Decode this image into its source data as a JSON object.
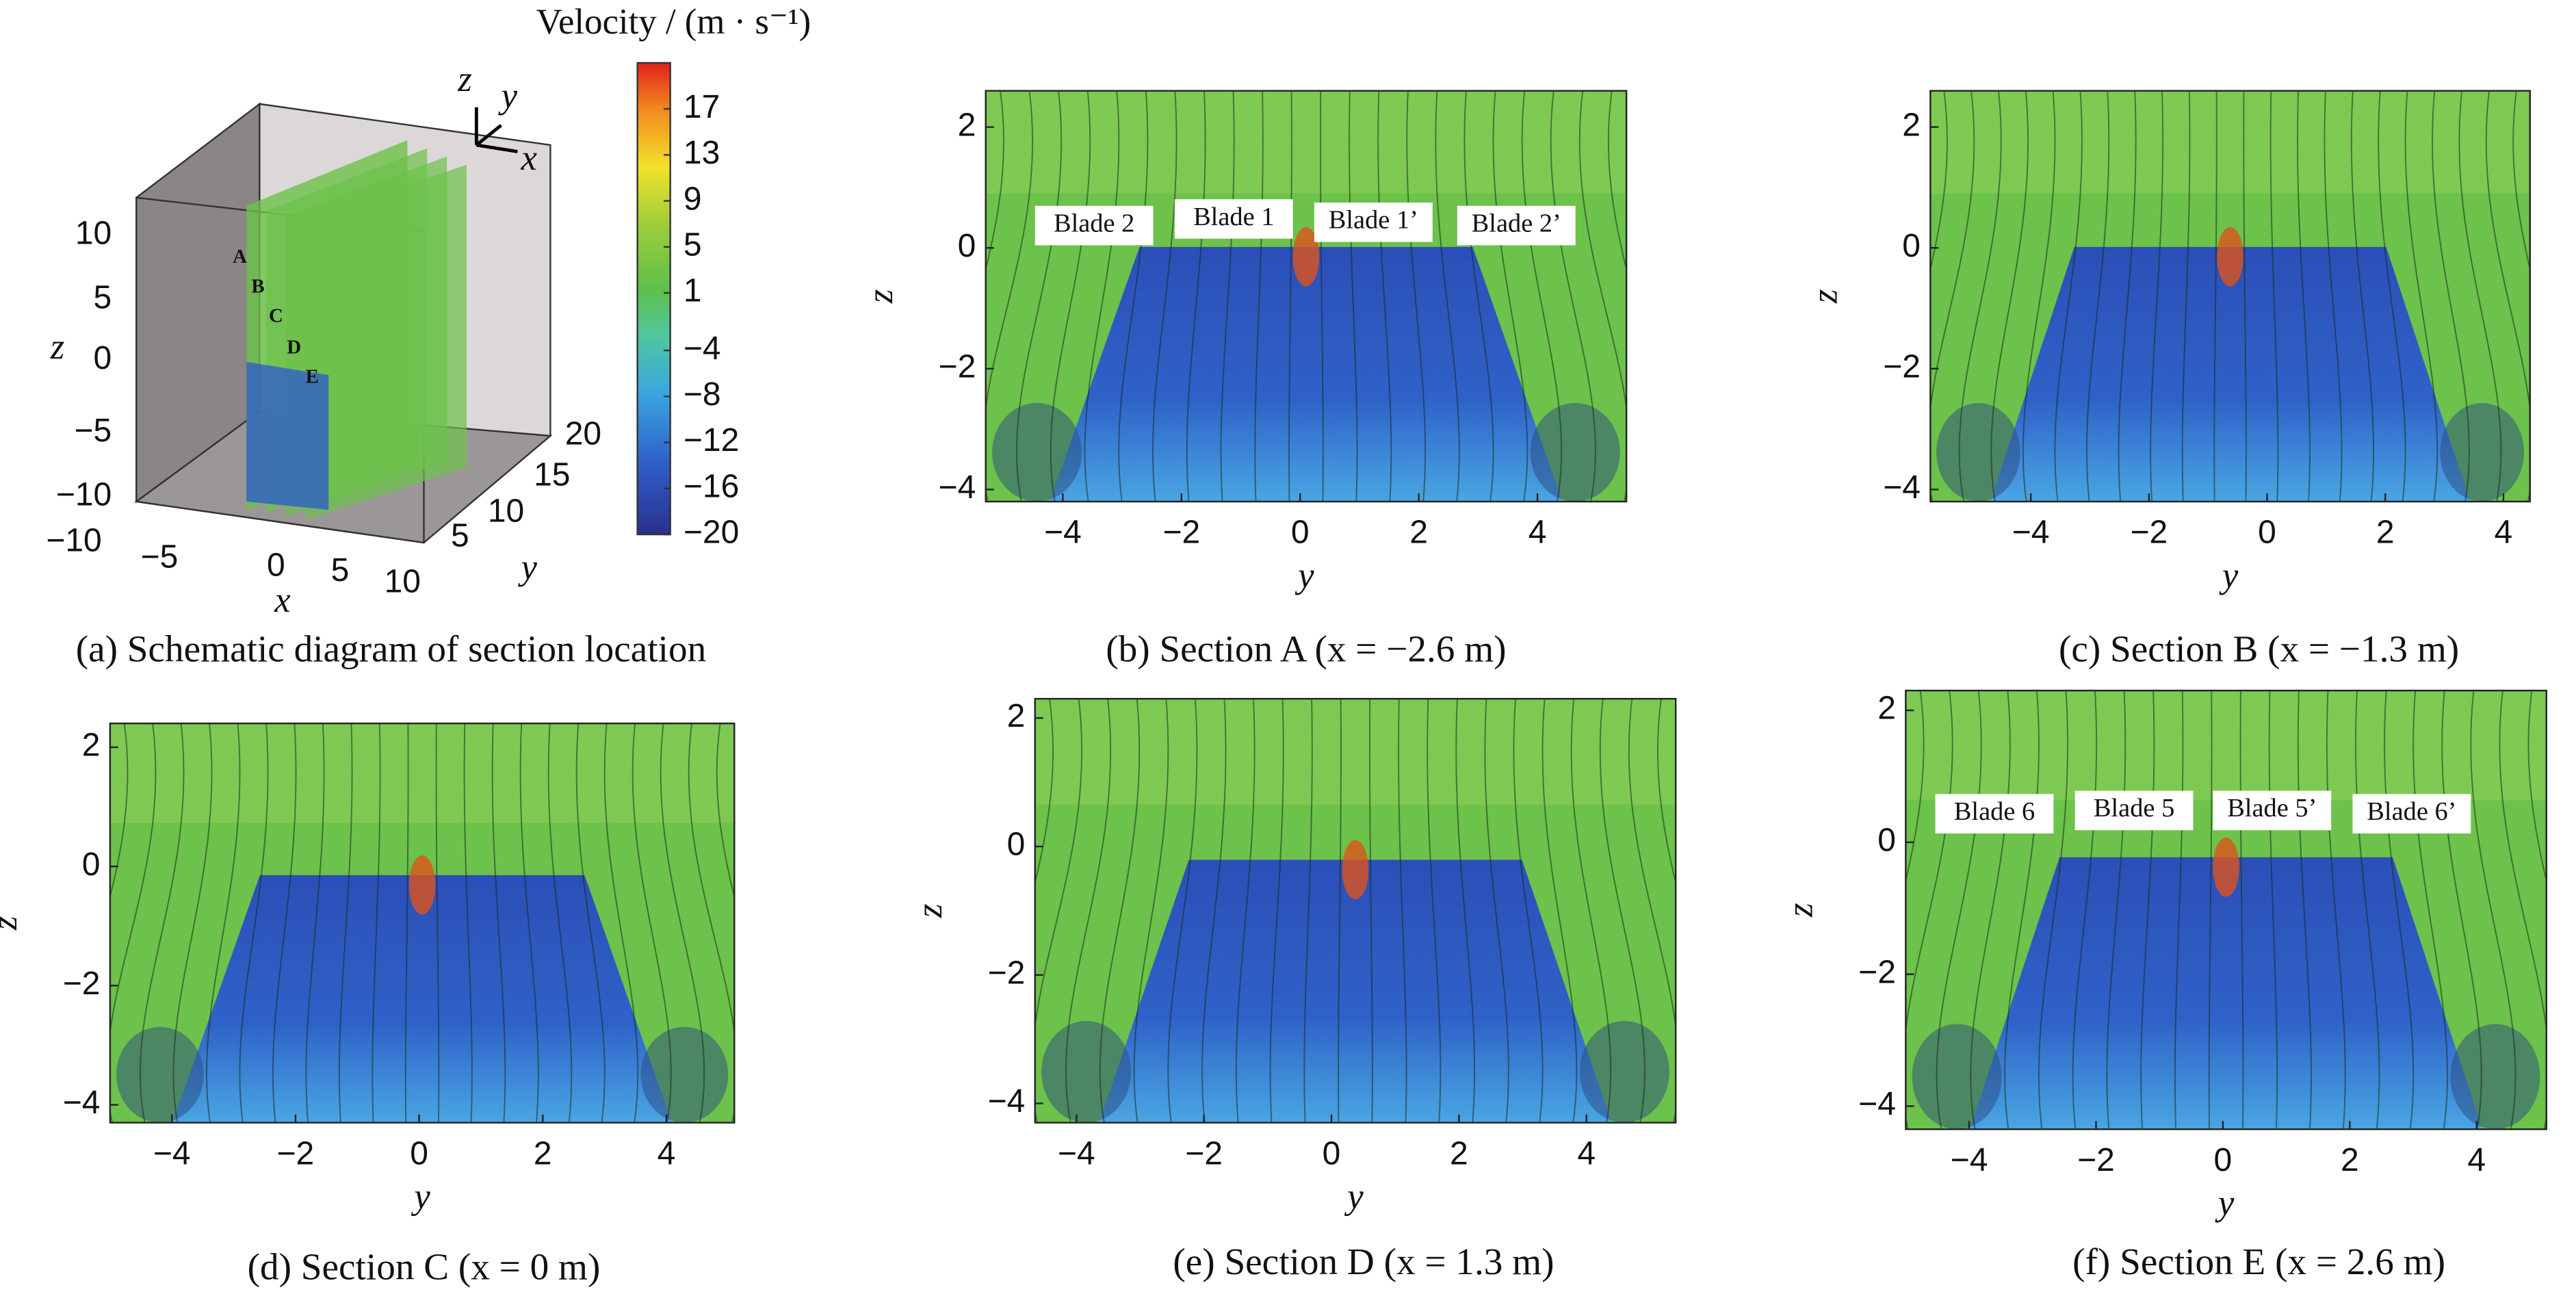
{
  "panel_a": {
    "caption": "(a) Schematic diagram of section location",
    "xlabel": "x",
    "ylabel": "y",
    "zlabel": "z",
    "xticks": [
      {
        "value": -10,
        "label": "−10"
      },
      {
        "value": -5,
        "label": "−5"
      },
      0,
      5,
      10
    ],
    "yticks": [
      5,
      10,
      15,
      20
    ],
    "zticks": [
      10,
      5,
      0,
      {
        "value": -5,
        "label": "−5"
      },
      {
        "value": -10,
        "label": "−10"
      }
    ],
    "sections": [
      "A",
      "B",
      "C",
      "D",
      "E"
    ],
    "triad": [
      "z",
      "y",
      "x"
    ]
  },
  "colorbar": {
    "title": "Velocity / (m · s⁻¹)",
    "clim": [
      -20,
      21
    ],
    "ticks": [
      17,
      13,
      9,
      5,
      1,
      {
        "value": -4,
        "label": "−4"
      },
      {
        "value": -8,
        "label": "−8"
      },
      {
        "value": -12,
        "label": "−12"
      },
      {
        "value": -16,
        "label": "−16"
      },
      {
        "value": -20,
        "label": "−20"
      }
    ]
  },
  "panels": [
    {
      "caption": "(b) Section A (x = −2.6 m)",
      "xlabel": "y",
      "ylabel": "z",
      "xlim": [
        -5.3,
        5.5
      ],
      "ylim": [
        -4.2,
        2.6
      ],
      "xticks": [
        {
          "value": -4,
          "label": "−4"
        },
        {
          "value": -2,
          "label": "−2"
        },
        0,
        2,
        4
      ],
      "yticks": [
        2,
        0,
        {
          "value": -2,
          "label": "−2"
        },
        {
          "value": -4,
          "label": "−4"
        }
      ],
      "blades": [
        "Blade 2",
        "Blade 1",
        "Blade 1’",
        "Blade 2’"
      ]
    },
    {
      "caption": "(c) Section B (x = −1.3 m)",
      "xlabel": "y",
      "ylabel": "z",
      "xlim": [
        -5.7,
        4.45
      ],
      "ylim": [
        -4.2,
        2.6
      ],
      "xticks": [
        {
          "value": -4,
          "label": "−4"
        },
        {
          "value": -2,
          "label": "−2"
        },
        0,
        2,
        4
      ],
      "yticks": [
        2,
        0,
        {
          "value": -2,
          "label": "−2"
        },
        {
          "value": -4,
          "label": "−4"
        }
      ]
    },
    {
      "caption": "(d) Section C (x = 0 m)",
      "xlabel": "y",
      "ylabel": "z",
      "xlim": [
        -5.0,
        5.1
      ],
      "ylim": [
        -4.3,
        2.4
      ],
      "xticks": [
        {
          "value": -4,
          "label": "−4"
        },
        {
          "value": -2,
          "label": "−2"
        },
        0,
        2,
        4
      ],
      "yticks": [
        2,
        0,
        {
          "value": -2,
          "label": "−2"
        },
        {
          "value": -4,
          "label": "−4"
        }
      ]
    },
    {
      "caption": "(e) Section D (x = 1.3 m)",
      "xlabel": "y",
      "ylabel": "z",
      "xlim": [
        -4.65,
        5.4
      ],
      "ylim": [
        -4.3,
        2.3
      ],
      "xticks": [
        {
          "value": -4,
          "label": "−4"
        },
        {
          "value": -2,
          "label": "−2"
        },
        0,
        2,
        4
      ],
      "yticks": [
        2,
        0,
        {
          "value": -2,
          "label": "−2"
        },
        {
          "value": -4,
          "label": "−4"
        }
      ]
    },
    {
      "caption": "(f) Section E (x = 2.6 m)",
      "xlabel": "y",
      "ylabel": "z",
      "xlim": [
        -5.0,
        5.1
      ],
      "ylim": [
        -4.35,
        2.3
      ],
      "xticks": [
        {
          "value": -4,
          "label": "−4"
        },
        {
          "value": -2,
          "label": "−2"
        },
        0,
        2,
        4
      ],
      "yticks": [
        2,
        0,
        {
          "value": -2,
          "label": "−2"
        },
        {
          "value": -4,
          "label": "−4"
        }
      ],
      "blades": [
        "Blade 6",
        "Blade 5",
        "Blade 5’",
        "Blade 6’"
      ]
    }
  ]
}
